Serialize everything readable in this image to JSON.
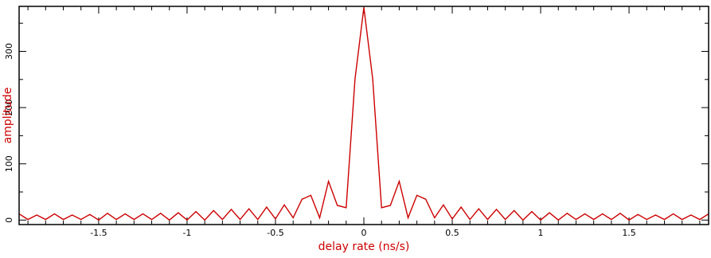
{
  "chart_data": {
    "type": "line",
    "title": "",
    "xlabel": "delay rate (ns/s)",
    "ylabel": "amplitude",
    "xlim": [
      -1.95,
      1.95
    ],
    "ylim": [
      -8,
      380
    ],
    "x_ticks": [
      -1.5,
      -1,
      -0.5,
      0,
      0.5,
      1,
      1.5
    ],
    "x_tick_labels": [
      "-1.5",
      "-1",
      "-0.5",
      "0",
      "0.5",
      "1",
      "1.5"
    ],
    "y_ticks": [
      0,
      100,
      200,
      300
    ],
    "y_tick_labels": [
      "0",
      "100",
      "200",
      "300"
    ],
    "grid": false,
    "legend": "none",
    "colors": {
      "line": "#cc0000",
      "axis_labels": "#cc0000",
      "frame": "#000000"
    },
    "series": [
      {
        "x": [
          -1.95,
          -1.9,
          -1.85,
          -1.8,
          -1.75,
          -1.7,
          -1.65,
          -1.6,
          -1.55,
          -1.5,
          -1.45,
          -1.4,
          -1.35,
          -1.3,
          -1.25,
          -1.2,
          -1.15,
          -1.1,
          -1.05,
          -1.0,
          -0.95,
          -0.9,
          -0.85,
          -0.8,
          -0.75,
          -0.7,
          -0.65,
          -0.6,
          -0.55,
          -0.5,
          -0.45,
          -0.4,
          -0.35,
          -0.3,
          -0.25,
          -0.2,
          -0.15,
          -0.1,
          -0.05,
          0,
          0.05,
          0.1,
          0.15,
          0.2,
          0.25,
          0.3,
          0.35,
          0.4,
          0.45,
          0.5,
          0.55,
          0.6,
          0.65,
          0.7,
          0.75,
          0.8,
          0.85,
          0.9,
          0.95,
          1.0,
          1.05,
          1.1,
          1.15,
          1.2,
          1.25,
          1.3,
          1.35,
          1.4,
          1.45,
          1.5,
          1.55,
          1.6,
          1.65,
          1.7,
          1.75,
          1.8,
          1.85,
          1.9,
          1.95
        ],
        "y": [
          11,
          1,
          9,
          1,
          11,
          1,
          9,
          1,
          10,
          0,
          12,
          1,
          11,
          1,
          11,
          1,
          12,
          0,
          13,
          0,
          15,
          0,
          17,
          1,
          19,
          1,
          20,
          1,
          23,
          2,
          27,
          4,
          37,
          44,
          4,
          69,
          26,
          22,
          251,
          378,
          251,
          22,
          26,
          69,
          4,
          44,
          37,
          4,
          27,
          2,
          23,
          1,
          20,
          1,
          19,
          1,
          17,
          0,
          15,
          0,
          13,
          0,
          12,
          1,
          11,
          1,
          11,
          1,
          12,
          0,
          10,
          1,
          9,
          1,
          11,
          1,
          9,
          1,
          11
        ]
      }
    ]
  }
}
